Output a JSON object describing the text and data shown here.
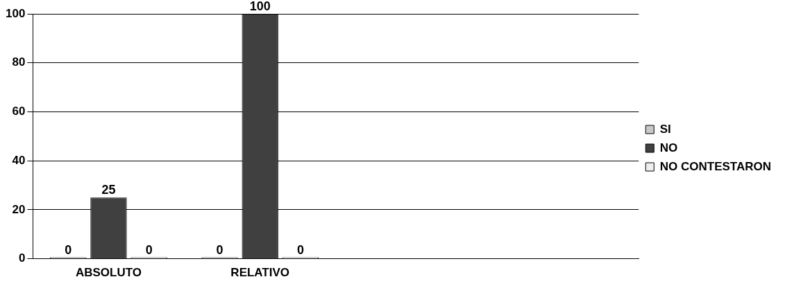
{
  "chart_data": {
    "type": "bar",
    "categories": [
      "ABSOLUTO",
      "RELATIVO",
      null,
      null
    ],
    "series": [
      {
        "name": "SI",
        "color": "#c8c8c8",
        "values": [
          0,
          0,
          null,
          null
        ]
      },
      {
        "name": "NO",
        "color": "#404040",
        "values": [
          25,
          100,
          null,
          null
        ]
      },
      {
        "name": "NO CONTESTARON",
        "color": "#eeeeee",
        "values": [
          0,
          0,
          null,
          null
        ]
      }
    ],
    "ylim": [
      0,
      100
    ],
    "yticks": [
      0,
      20,
      40,
      60,
      80,
      100
    ],
    "grid": "y",
    "legend": "right",
    "data_labels": true
  }
}
